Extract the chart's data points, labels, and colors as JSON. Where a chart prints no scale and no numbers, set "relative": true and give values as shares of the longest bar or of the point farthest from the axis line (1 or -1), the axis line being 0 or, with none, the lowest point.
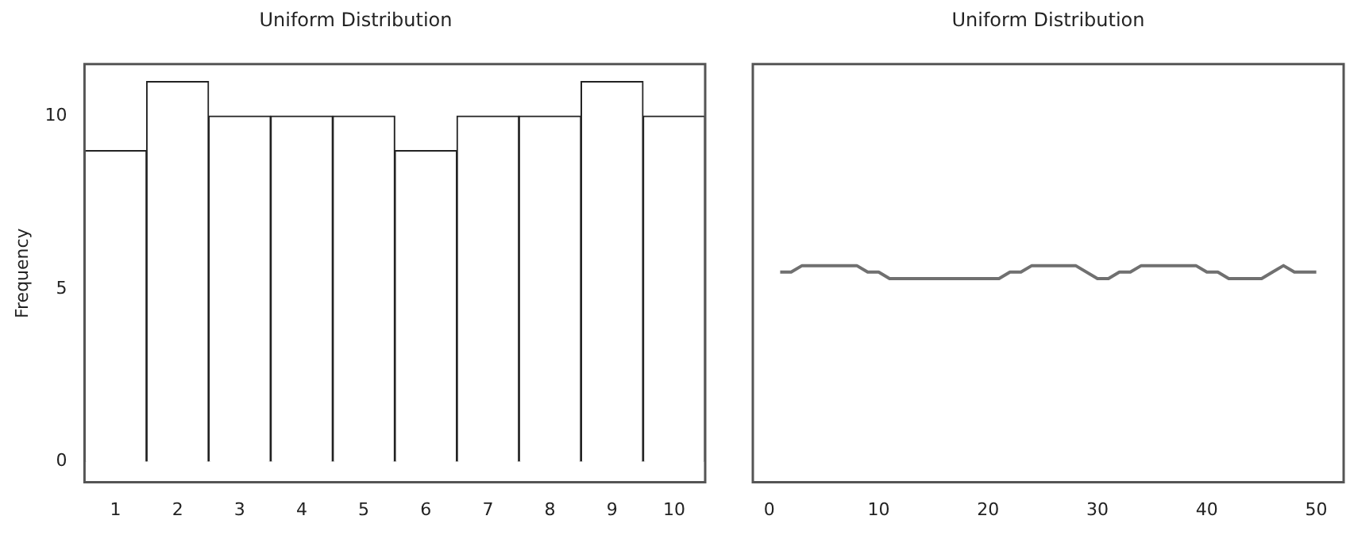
{
  "chart_data": [
    {
      "type": "bar",
      "title": "Uniform Distribution",
      "ylabel": "Frequency",
      "categories": [
        "1",
        "2",
        "3",
        "4",
        "5",
        "6",
        "7",
        "8",
        "9",
        "10"
      ],
      "values": [
        9,
        11,
        10,
        10,
        10,
        9,
        10,
        10,
        11,
        10
      ],
      "color": "#ffffff",
      "ylim": [
        -0.6,
        11.5
      ],
      "yticks": [
        0,
        5,
        10
      ]
    },
    {
      "type": "line",
      "title": "Uniform Distribution",
      "relative": true,
      "marker": "none",
      "color": "#707070",
      "x": [
        1,
        2,
        3,
        8,
        9,
        10,
        11,
        21,
        22,
        23,
        24,
        28,
        30,
        31,
        32,
        33,
        34,
        39,
        40,
        41,
        42,
        45,
        46,
        47,
        48,
        50
      ],
      "values": [
        0.97,
        0.97,
        1,
        1,
        0.97,
        0.97,
        0.94,
        0.94,
        0.97,
        0.97,
        1,
        1,
        0.94,
        0.94,
        0.97,
        0.97,
        1,
        1,
        0.97,
        0.97,
        0.94,
        0.94,
        0.97,
        1,
        0.97,
        0.97
      ],
      "xlim": [
        -1.5,
        52.5
      ],
      "xticks": [
        0,
        10,
        20,
        30,
        40,
        50
      ]
    }
  ]
}
